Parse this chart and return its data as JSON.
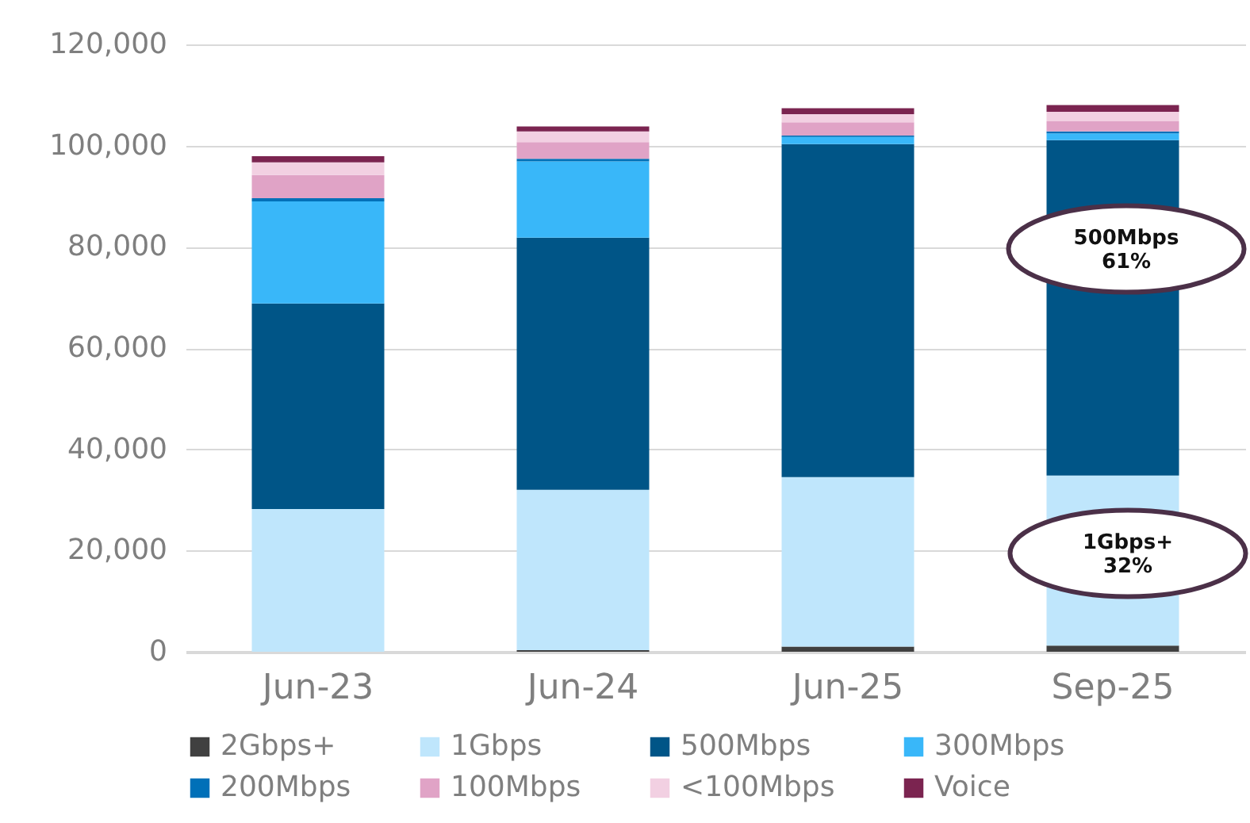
{
  "chart_data": {
    "type": "bar",
    "stacked": true,
    "categories": [
      "Jun-23",
      "Jun-24",
      "Jun-25",
      "Sep-25"
    ],
    "series": [
      {
        "name": "2Gbps+",
        "color": "#404040",
        "values": [
          0,
          300,
          1000,
          1200
        ]
      },
      {
        "name": "1Gbps",
        "color": "#bfe6fc",
        "values": [
          28200,
          31700,
          33500,
          33600
        ]
      },
      {
        "name": "500Mbps",
        "color": "#005587",
        "values": [
          40600,
          49800,
          65800,
          66300
        ]
      },
      {
        "name": "300Mbps",
        "color": "#39b7f9",
        "values": [
          20200,
          15100,
          1400,
          1300
        ]
      },
      {
        "name": "200Mbps",
        "color": "#0070b8",
        "values": [
          600,
          500,
          300,
          400
        ]
      },
      {
        "name": "100Mbps",
        "color": "#e0a3c6",
        "values": [
          4600,
          3300,
          2600,
          2000
        ]
      },
      {
        "name": "<100Mbps",
        "color": "#f2d0e2",
        "values": [
          2500,
          2100,
          1600,
          1900
        ]
      },
      {
        "name": "Voice",
        "color": "#7b2450",
        "values": [
          1200,
          1000,
          1200,
          1300
        ]
      }
    ],
    "ylim": [
      0,
      120000
    ],
    "yticks": [
      0,
      {
        "value": 20000,
        "label": "20,000"
      },
      {
        "value": 40000,
        "label": "40,000"
      },
      {
        "value": 60000,
        "label": "60,000"
      },
      {
        "value": 80000,
        "label": "80,000"
      },
      {
        "value": 100000,
        "label": "100,000"
      },
      {
        "value": 120000,
        "label": "120,000"
      }
    ],
    "grid": "y",
    "legend": "bottom",
    "annotations": [
      "500Mbps\n61%",
      "1Gbps+\n32%"
    ]
  }
}
